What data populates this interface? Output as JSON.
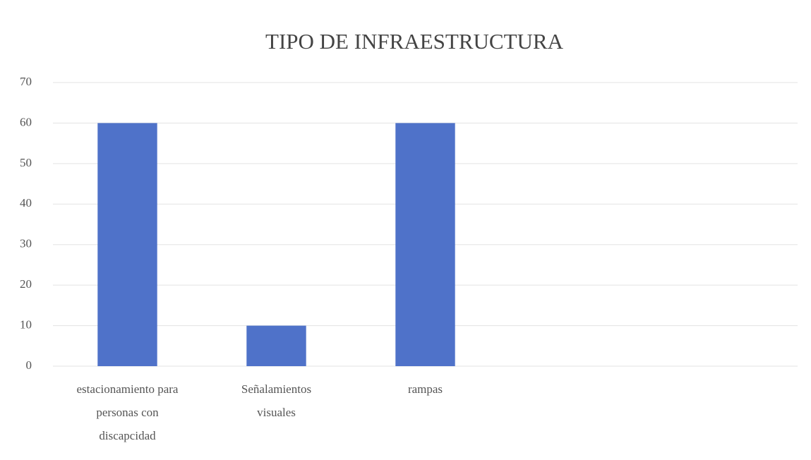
{
  "chart_data": {
    "type": "bar",
    "title": "TIPO DE INFRAESTRUCTURA",
    "categories": [
      "estacionamiento para personas con discapcidad",
      "Señalamientos visuales",
      "rampas",
      null,
      null
    ],
    "values": [
      60,
      10,
      60,
      null,
      null
    ],
    "color": "#4f72c9",
    "ylim": [
      0,
      70
    ],
    "yticks": [
      0,
      10,
      20,
      30,
      40,
      50,
      60,
      70
    ],
    "grid": true
  }
}
